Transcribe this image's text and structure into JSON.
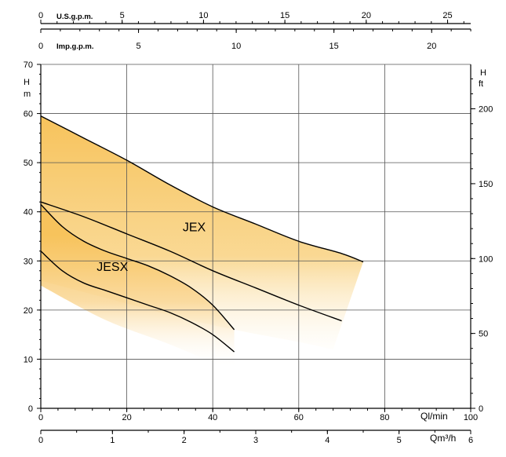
{
  "chart_data": {
    "type": "area",
    "title": "",
    "units": {
      "left": "H\nm",
      "right": "H\nft",
      "lpm": "Ql/min",
      "m3h": "Qm³/h",
      "usgpm": "U.S.g.p.m.",
      "impgpm": "Imp.g.p.m."
    },
    "axes": {
      "lpm": {
        "range": [
          0,
          100
        ],
        "ticks": [
          0,
          20,
          40,
          60,
          80,
          100
        ],
        "tick_labels": [
          "0",
          "20",
          "40",
          "60",
          "80",
          "100"
        ]
      },
      "m3h": {
        "range": [
          0,
          6
        ],
        "ticks": [
          0,
          1,
          2,
          3,
          4,
          5,
          6
        ],
        "tick_labels": [
          "0",
          "1",
          "2",
          "3",
          "4",
          "5",
          "6"
        ]
      },
      "usgpm": {
        "range": [
          0,
          26.42
        ],
        "ticks": [
          0,
          5,
          10,
          15,
          20,
          25
        ],
        "tick_labels": [
          "0",
          "5",
          "10",
          "15",
          "20",
          "25"
        ]
      },
      "impgpm": {
        "range": [
          0,
          22
        ],
        "ticks": [
          0,
          5,
          10,
          15,
          20
        ],
        "tick_labels": [
          "0",
          "5",
          "10",
          "15",
          "20"
        ]
      },
      "head_m": {
        "range": [
          0,
          70
        ],
        "ticks": [
          0,
          10,
          20,
          30,
          40,
          50,
          60,
          70
        ],
        "tick_labels": [
          "0",
          "10",
          "20",
          "30",
          "40",
          "50",
          "60",
          "70"
        ]
      },
      "head_ft": {
        "range": [
          0,
          229.7
        ],
        "ticks": [
          0,
          50,
          100,
          150,
          200
        ],
        "tick_labels": [
          "0",
          "50",
          "100",
          "150",
          "200"
        ]
      }
    },
    "grid": true,
    "series": [
      {
        "name": "JEX",
        "color": "#f7c35c",
        "upper": [
          [
            0,
            59.5
          ],
          [
            10,
            55
          ],
          [
            20,
            50.5
          ],
          [
            30,
            45.5
          ],
          [
            40,
            41
          ],
          [
            50,
            37.5
          ],
          [
            60,
            34
          ],
          [
            70,
            31.5
          ],
          [
            75,
            29.8
          ]
        ],
        "lower": [
          [
            0,
            42
          ],
          [
            10,
            39
          ],
          [
            20,
            35.5
          ],
          [
            30,
            32
          ],
          [
            40,
            28
          ],
          [
            50,
            24.5
          ],
          [
            60,
            21
          ],
          [
            70,
            17.8
          ]
        ],
        "fade_to": [
          [
            0,
            26
          ],
          [
            15,
            22.5
          ],
          [
            30,
            19
          ],
          [
            45,
            16
          ],
          [
            60,
            13.5
          ],
          [
            68,
            12
          ]
        ],
        "label_at": [
          33,
          36
        ]
      },
      {
        "name": "JESX",
        "color": "#f7c35c",
        "upper": [
          [
            0,
            41.5
          ],
          [
            5,
            37
          ],
          [
            10,
            34
          ],
          [
            15,
            32
          ],
          [
            20,
            30.5
          ],
          [
            25,
            29
          ],
          [
            30,
            27
          ],
          [
            35,
            24.5
          ],
          [
            40,
            21
          ],
          [
            45,
            16
          ]
        ],
        "lower": [
          [
            0,
            32
          ],
          [
            5,
            28
          ],
          [
            10,
            25.5
          ],
          [
            15,
            24
          ],
          [
            20,
            22.5
          ],
          [
            25,
            21
          ],
          [
            30,
            19.5
          ],
          [
            35,
            17.5
          ],
          [
            40,
            15
          ],
          [
            45,
            11.5
          ]
        ],
        "fade_to": [
          [
            0,
            25
          ],
          [
            15,
            18
          ],
          [
            30,
            13
          ],
          [
            45,
            7.5
          ]
        ],
        "label_at": [
          13,
          28
        ]
      }
    ]
  }
}
